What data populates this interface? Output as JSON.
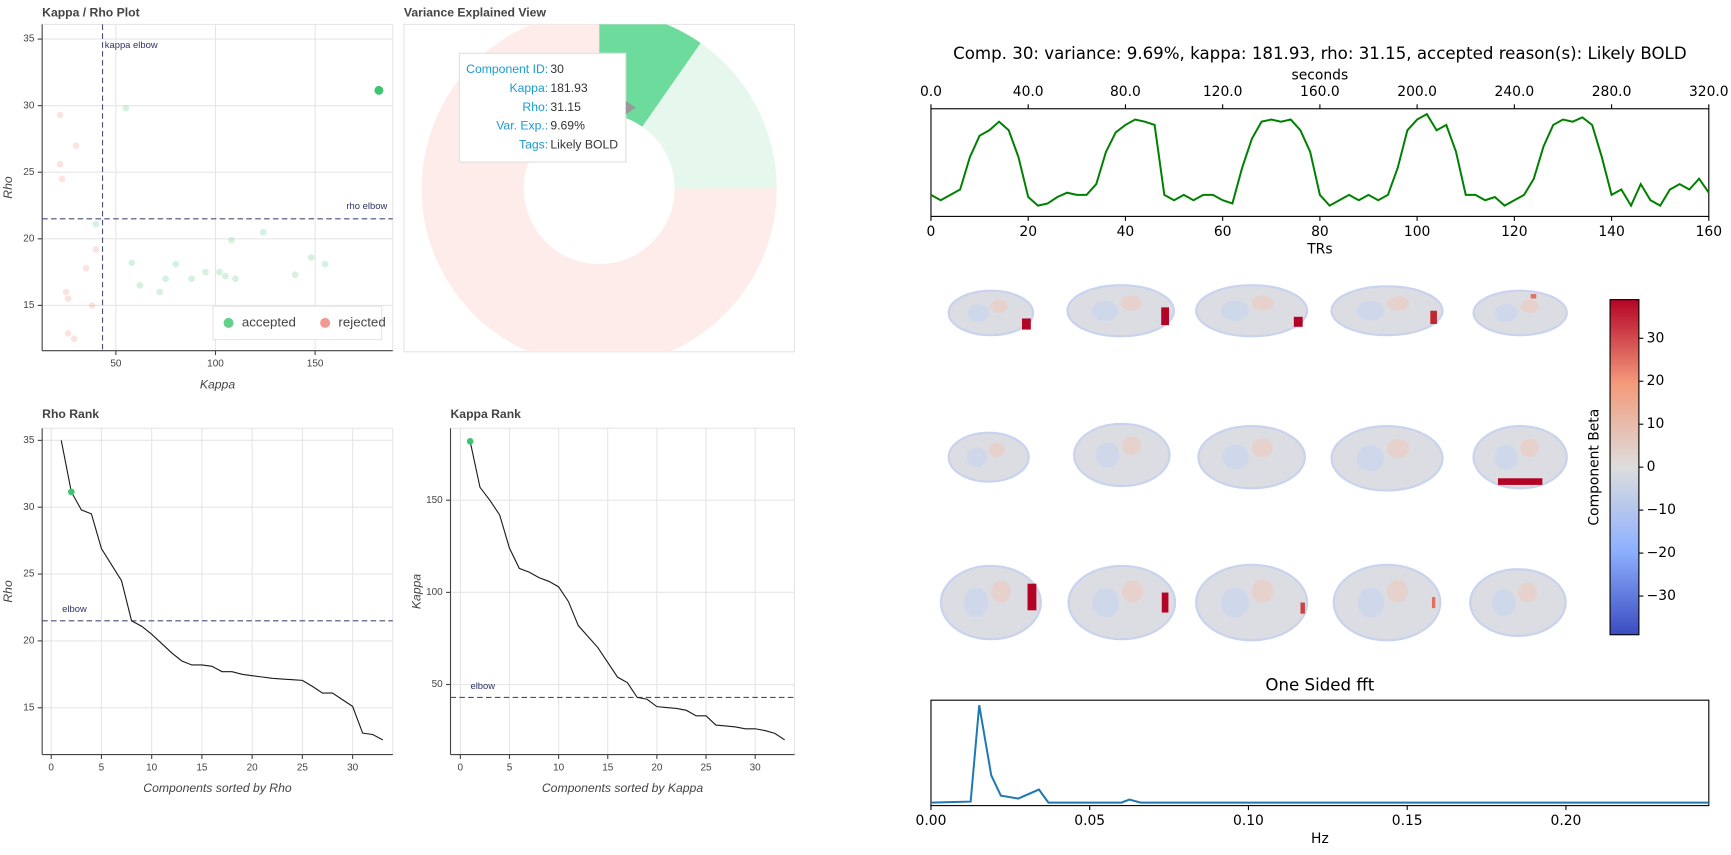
{
  "chart_data": [
    {
      "type": "scatter",
      "title": "Kappa / Rho Plot",
      "x_label": "Kappa",
      "y_label": "Rho",
      "xlim": [
        13,
        189
      ],
      "ylim": [
        11.6,
        36.1
      ],
      "xticks": [
        50,
        100,
        150
      ],
      "yticks": [
        15,
        20,
        25,
        30,
        35
      ],
      "grid": true,
      "legend": "bottom-right",
      "series": [
        {
          "name": "accepted",
          "color": "#3cc46f",
          "highlight": 0,
          "x": [
            182,
            55,
            40,
            58,
            62,
            72,
            75,
            80,
            88,
            95,
            102,
            105,
            110,
            108,
            124,
            140,
            148,
            155
          ],
          "values": [
            31.15,
            29.8,
            21.1,
            18.2,
            16.5,
            16,
            17,
            18.1,
            17,
            17.5,
            17.5,
            17.2,
            17,
            19.9,
            20.5,
            17.3,
            18.6,
            18.1
          ]
        },
        {
          "name": "rejected",
          "color": "#f07f78",
          "x": [
            22,
            22,
            23,
            30,
            40,
            35,
            25,
            26,
            26,
            29,
            38
          ],
          "values": [
            29.3,
            25.6,
            24.5,
            27,
            19.2,
            17.8,
            16,
            15.5,
            12.9,
            12.5,
            15
          ]
        }
      ],
      "lines": [
        {
          "label": "kappa elbow",
          "axis": "x",
          "value": 43.3
        },
        {
          "label": "rho elbow",
          "axis": "y",
          "value": 21.5
        }
      ]
    },
    {
      "type": "pie",
      "title": "Variance Explained View",
      "values": [
        9.69,
        15.3,
        75.01
      ],
      "colors": [
        "#6ddb9b",
        "#e6f8ed",
        "#fdece9"
      ],
      "highlight": 0,
      "tooltip": {
        "labels": [
          "Component ID:",
          "Kappa:",
          "Rho:",
          "Var. Exp.:",
          "Tags:"
        ],
        "values": [
          "30",
          "181.93",
          "31.15",
          "9.69%",
          "Likely BOLD"
        ]
      }
    },
    {
      "type": "line",
      "title": "Rho Rank",
      "x_label": "Components sorted by Rho",
      "y_label": "Rho",
      "color": "#1a1a1a",
      "highlight": 1,
      "highlight_color": "#3cc46f",
      "x": [
        1,
        2,
        3,
        4,
        5,
        6,
        7,
        8,
        9,
        10,
        11,
        12,
        13,
        14,
        15,
        16,
        17,
        18,
        19,
        20,
        21,
        22,
        23,
        24,
        25,
        26,
        27,
        28,
        29,
        30,
        31,
        32,
        33
      ],
      "values": [
        35.0,
        31.15,
        29.8,
        29.5,
        26.9,
        25.7,
        24.5,
        21.5,
        21.1,
        20.5,
        19.8,
        19.1,
        18.5,
        18.2,
        18.2,
        18.1,
        17.7,
        17.7,
        17.5,
        17.4,
        17.3,
        17.2,
        17.15,
        17.1,
        17.05,
        16.6,
        16.1,
        16.1,
        15.6,
        15.1,
        13.1,
        13.0,
        12.6
      ],
      "xlim": [
        -0.9,
        34
      ],
      "ylim": [
        11.5,
        35.9
      ],
      "xticks": [
        0,
        5,
        10,
        15,
        20,
        25,
        30
      ],
      "yticks": [
        15,
        20,
        25,
        30,
        35
      ],
      "grid": true,
      "elbow": {
        "label": "elbow",
        "value": 21.5
      }
    },
    {
      "type": "line",
      "title": "Kappa Rank",
      "x_label": "Components sorted by Kappa",
      "y_label": "Kappa",
      "color": "#1a1a1a",
      "highlight": 0,
      "highlight_color": "#3cc46f",
      "x": [
        1,
        2,
        3,
        4,
        5,
        6,
        7,
        8,
        9,
        10,
        11,
        12,
        13,
        14,
        15,
        16,
        17,
        18,
        19,
        20,
        21,
        22,
        23,
        24,
        25,
        26,
        27,
        28,
        29,
        30,
        31,
        32,
        33
      ],
      "values": [
        181.93,
        157,
        150,
        142,
        124,
        113,
        111,
        108,
        106,
        103,
        95,
        82,
        76,
        70,
        62,
        54,
        51,
        43,
        42,
        38,
        37.5,
        37,
        36,
        33,
        33,
        28,
        27.5,
        27,
        26,
        26,
        25,
        23.5,
        20
      ],
      "xlim": [
        -1,
        34
      ],
      "ylim": [
        12,
        189
      ],
      "xticks": [
        0,
        5,
        10,
        15,
        20,
        25,
        30
      ],
      "yticks": [
        50,
        100,
        150
      ],
      "grid": true,
      "elbow": {
        "label": "elbow",
        "value": 43
      }
    },
    {
      "type": "line",
      "title": "Comp. 30: variance: 9.69%, kappa: 181.93, rho: 31.15, accepted reason(s): Likely BOLD",
      "x_label": "TRs",
      "x2_label": "seconds",
      "color": "#008000",
      "x": [
        0,
        2,
        4,
        6,
        8,
        10,
        12,
        14,
        16,
        18,
        20,
        22,
        24,
        26,
        28,
        30,
        32,
        34,
        36,
        38,
        40,
        42,
        44,
        46,
        48,
        50,
        52,
        54,
        56,
        58,
        60,
        62,
        64,
        66,
        68,
        70,
        72,
        74,
        76,
        78,
        80,
        82,
        84,
        86,
        88,
        90,
        92,
        94,
        96,
        98,
        100,
        102,
        104,
        106,
        108,
        110,
        112,
        114,
        116,
        118,
        120,
        122,
        124,
        126,
        128,
        130,
        132,
        134,
        136,
        138,
        140,
        142,
        144,
        146,
        148,
        150,
        152,
        154,
        156,
        158,
        160
      ],
      "values": [
        0.2,
        0.15,
        0.2,
        0.25,
        0.55,
        0.75,
        0.8,
        0.88,
        0.8,
        0.55,
        0.18,
        0.1,
        0.12,
        0.18,
        0.22,
        0.2,
        0.2,
        0.3,
        0.6,
        0.78,
        0.85,
        0.9,
        0.88,
        0.85,
        0.2,
        0.15,
        0.2,
        0.15,
        0.2,
        0.2,
        0.15,
        0.12,
        0.45,
        0.72,
        0.88,
        0.9,
        0.88,
        0.9,
        0.8,
        0.6,
        0.2,
        0.1,
        0.15,
        0.2,
        0.15,
        0.2,
        0.15,
        0.2,
        0.45,
        0.8,
        0.9,
        0.95,
        0.8,
        0.85,
        0.6,
        0.2,
        0.2,
        0.15,
        0.18,
        0.1,
        0.15,
        0.2,
        0.35,
        0.65,
        0.85,
        0.9,
        0.88,
        0.92,
        0.85,
        0.55,
        0.2,
        0.25,
        0.1,
        0.3,
        0.15,
        0.1,
        0.25,
        0.3,
        0.25,
        0.35,
        0.22
      ],
      "xlim": [
        0,
        160
      ],
      "ylim": [
        0,
        1
      ],
      "xticks": [
        0,
        20,
        40,
        60,
        80,
        100,
        120,
        140,
        160
      ],
      "x2lim": [
        0,
        320
      ],
      "x2ticks": [
        {
          "value": 0,
          "label": "0.0"
        },
        {
          "value": 40,
          "label": "40.0"
        },
        {
          "value": 80,
          "label": "80.0"
        },
        {
          "value": 120,
          "label": "120.0"
        },
        {
          "value": 160,
          "label": "160.0"
        },
        {
          "value": 200,
          "label": "200.0"
        },
        {
          "value": 240,
          "label": "240.0"
        },
        {
          "value": 280,
          "label": "280.0"
        },
        {
          "value": 320,
          "label": "320.0"
        }
      ]
    },
    {
      "type": "line",
      "title": "One Sided fft",
      "x_label": "Hz",
      "color": "#1f77b4",
      "x": [
        0,
        0.006,
        0.0125,
        0.0152,
        0.019,
        0.022,
        0.0275,
        0.034,
        0.037,
        0.05,
        0.06,
        0.0625,
        0.066,
        0.08,
        0.1,
        0.15,
        0.2,
        0.245
      ],
      "values": [
        0.03,
        0.035,
        0.04,
        1.0,
        0.3,
        0.1,
        0.07,
        0.16,
        0.03,
        0.03,
        0.03,
        0.06,
        0.03,
        0.03,
        0.03,
        0.03,
        0.03,
        0.03
      ],
      "xlim": [
        0,
        0.245
      ],
      "ylim": [
        0,
        1.05
      ],
      "xticks": [
        {
          "value": 0,
          "label": "0.00"
        },
        {
          "value": 0.05,
          "label": "0.05"
        },
        {
          "value": 0.1,
          "label": "0.10"
        },
        {
          "value": 0.15,
          "label": "0.15"
        },
        {
          "value": 0.2,
          "label": "0.20"
        }
      ]
    },
    {
      "type": "colorbar",
      "label": "Component Beta",
      "ylim": [
        -39,
        39
      ],
      "yticks": [
        {
          "value": -30,
          "label": "−30"
        },
        {
          "value": -20,
          "label": "−20"
        },
        {
          "value": -10,
          "label": "−10"
        },
        0,
        10,
        20,
        30
      ]
    }
  ]
}
